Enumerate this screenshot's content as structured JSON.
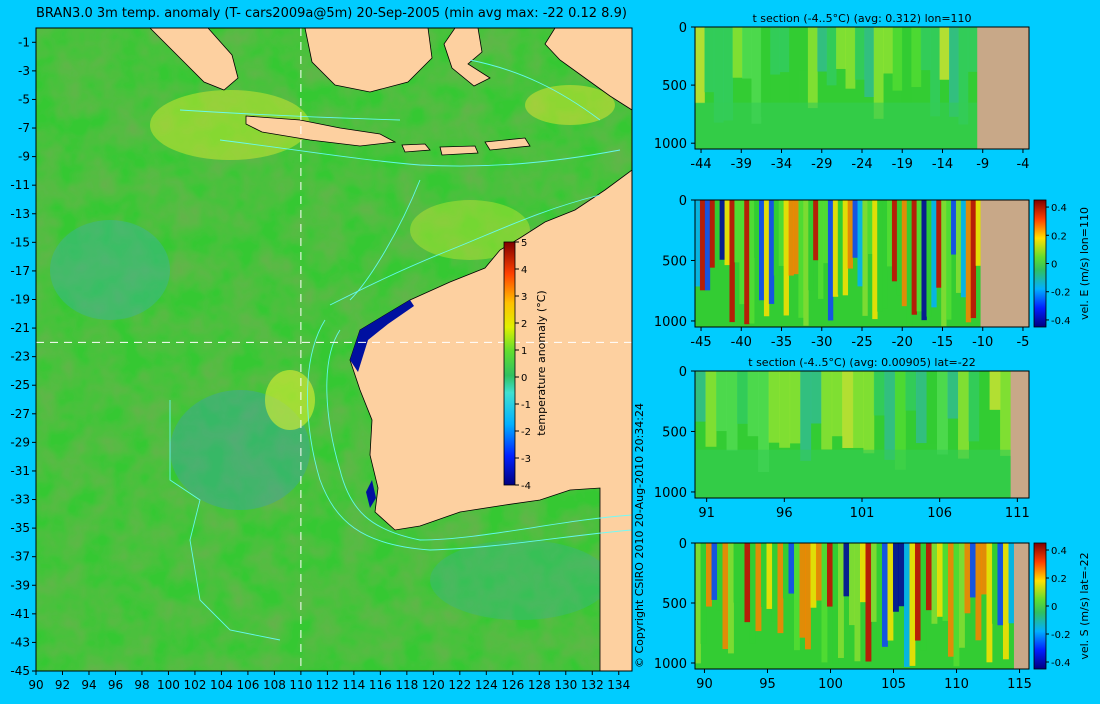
{
  "main_map": {
    "title": "BRAN3.0 3m temp. anomaly (T- cars2009a@5m) 20-Sep-2005 (min avg max: -22 0.12 8.9)",
    "lon_ticks": [
      "90",
      "92",
      "94",
      "96",
      "98",
      "100",
      "102",
      "104",
      "106",
      "108",
      "110",
      "112",
      "114",
      "116",
      "118",
      "120",
      "122",
      "124",
      "126",
      "128",
      "130",
      "132",
      "134"
    ],
    "lat_ticks": [
      "-1",
      "-3",
      "-5",
      "-7",
      "-9",
      "-11",
      "-13",
      "-15",
      "-17",
      "-19",
      "-21",
      "-23",
      "-25",
      "-27",
      "-29",
      "-31",
      "-33",
      "-35",
      "-37",
      "-39",
      "-41",
      "-43",
      "-45"
    ],
    "section_lon": 110,
    "section_lat": -22,
    "colorbar": {
      "label": "temperature anomaly (°C)",
      "ticks": [
        "5",
        "4",
        "3",
        "2",
        "1",
        "0",
        "-1",
        "-2",
        "-3",
        "-4"
      ]
    }
  },
  "copyright": "© Copyright CSIRO 2010   20-Aug-2010 20:34:24",
  "panels": [
    {
      "title": "t section (-4..5°C) (avg: 0.312) lon=110",
      "x_ticks": [
        "-44",
        "-39",
        "-34",
        "-29",
        "-24",
        "-19",
        "-14",
        "-9",
        "-4"
      ],
      "y_ticks": [
        "0",
        "500",
        "1000"
      ],
      "colorbar": null
    },
    {
      "title": "",
      "x_ticks": [
        "-45",
        "-40",
        "-35",
        "-30",
        "-25",
        "-20",
        "-15",
        "-10",
        "-5"
      ],
      "y_ticks": [
        "0",
        "500",
        "1000"
      ],
      "colorbar": {
        "label": "vel. E (m/s) lon=110",
        "ticks": [
          "0.4",
          "0.2",
          "0",
          "-0.2",
          "-0.4"
        ]
      }
    },
    {
      "title": "t section (-4..5°C) (avg: 0.00905) lat=-22",
      "x_ticks": [
        "91",
        "96",
        "101",
        "106",
        "111"
      ],
      "y_ticks": [
        "0",
        "500",
        "1000"
      ],
      "colorbar": null
    },
    {
      "title": "",
      "x_ticks": [
        "90",
        "95",
        "100",
        "105",
        "110",
        "115"
      ],
      "y_ticks": [
        "0",
        "500",
        "1000"
      ],
      "colorbar": {
        "label": "vel. S (m/s) lat=-22",
        "ticks": [
          "0.4",
          "0.2",
          "0",
          "-0.2",
          "-0.4"
        ]
      }
    }
  ],
  "colors": {
    "background": "#00ccff",
    "land": "#fdd0a0",
    "ocean": "#33cc33",
    "section_land": "#c8a888",
    "contour": "#66ffff"
  }
}
